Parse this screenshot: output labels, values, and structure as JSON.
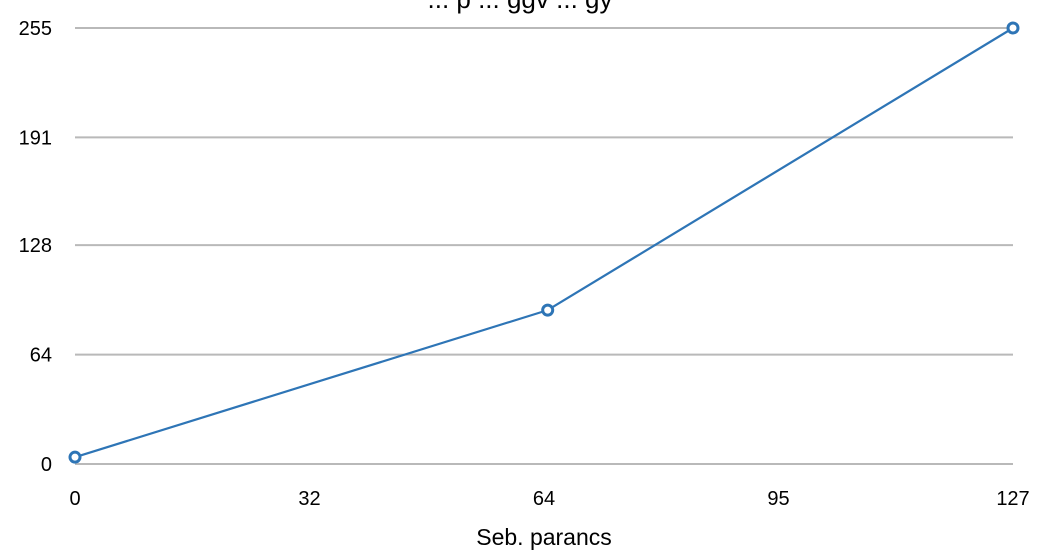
{
  "chart_data": {
    "type": "line",
    "title": "... p ... ggv ... gy",
    "xlabel": "Seb. parancs",
    "ylabel": "",
    "x_ticks": [
      "0",
      "32",
      "64",
      "95",
      "127"
    ],
    "y_ticks": [
      "0",
      "64",
      "128",
      "191",
      "255"
    ],
    "xlim": [
      0,
      127
    ],
    "ylim": [
      0,
      255
    ],
    "grid": "horizontal",
    "legend": "none",
    "series": [
      {
        "color": "#2e75b6",
        "x": [
          0,
          64,
          127
        ],
        "y": [
          4,
          90,
          255
        ]
      }
    ]
  }
}
